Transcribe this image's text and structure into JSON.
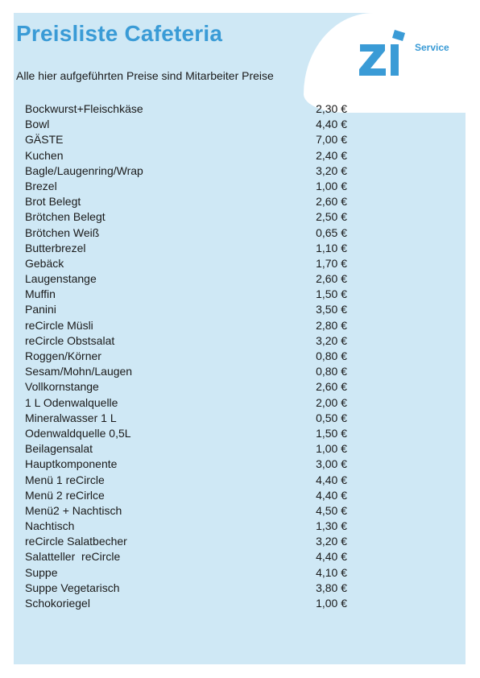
{
  "header": {
    "title": "Preisliste Cafeteria",
    "subtitle": "Alle hier aufgeführten Preise sind Mitarbeiter Preise"
  },
  "logo": {
    "text": "Service",
    "icon": "zi-logo",
    "color": "#3a9bd6"
  },
  "colors": {
    "panel": "#cfe8f5",
    "accent": "#3a9bd6"
  },
  "items": [
    {
      "name": "Bockwurst+Fleischkäse",
      "price": "2,30 €"
    },
    {
      "name": "Bowl",
      "price": "4,40 €"
    },
    {
      "name": "GÄSTE",
      "price": "7,00 €"
    },
    {
      "name": "Kuchen",
      "price": "2,40 €"
    },
    {
      "name": "Bagle/Laugenring/Wrap",
      "price": "3,20 €"
    },
    {
      "name": "Brezel",
      "price": "1,00 €"
    },
    {
      "name": "Brot Belegt",
      "price": "2,60 €"
    },
    {
      "name": "Brötchen Belegt",
      "price": "2,50 €"
    },
    {
      "name": "Brötchen Weiß",
      "price": "0,65 €"
    },
    {
      "name": "Butterbrezel",
      "price": "1,10 €"
    },
    {
      "name": "Gebäck",
      "price": "1,70 €"
    },
    {
      "name": "Laugenstange",
      "price": "2,60 €"
    },
    {
      "name": "Muffin",
      "price": "1,50 €"
    },
    {
      "name": "Panini",
      "price": "3,50 €"
    },
    {
      "name": "reCircle Müsli",
      "price": "2,80 €"
    },
    {
      "name": "reCircle Obstsalat",
      "price": "3,20 €"
    },
    {
      "name": "Roggen/Körner",
      "price": "0,80 €"
    },
    {
      "name": "Sesam/Mohn/Laugen",
      "price": "0,80 €"
    },
    {
      "name": "Vollkornstange",
      "price": "2,60 €"
    },
    {
      "name": "1 L Odenwalquelle",
      "price": "2,00 €"
    },
    {
      "name": "Mineralwasser 1 L",
      "price": "0,50 €"
    },
    {
      "name": "Odenwaldquelle 0,5L",
      "price": "1,50 €"
    },
    {
      "name": "Beilagensalat",
      "price": "1,00 €"
    },
    {
      "name": "Hauptkomponente",
      "price": "3,00 €"
    },
    {
      "name": "Menü 1 reCircle",
      "price": "4,40 €"
    },
    {
      "name": "Menü 2 reCirlce",
      "price": "4,40 €"
    },
    {
      "name": "Menü2 + Nachtisch",
      "price": "4,50 €"
    },
    {
      "name": "Nachtisch",
      "price": "1,30 €"
    },
    {
      "name": "reCircle Salatbecher",
      "price": "3,20 €"
    },
    {
      "name": "Salatteller  reCircle",
      "price": "4,40 €"
    },
    {
      "name": "Suppe",
      "price": "4,10 €"
    },
    {
      "name": "Suppe Vegetarisch",
      "price": "3,80 €"
    },
    {
      "name": "Schokoriegel",
      "price": "1,00 €"
    }
  ]
}
